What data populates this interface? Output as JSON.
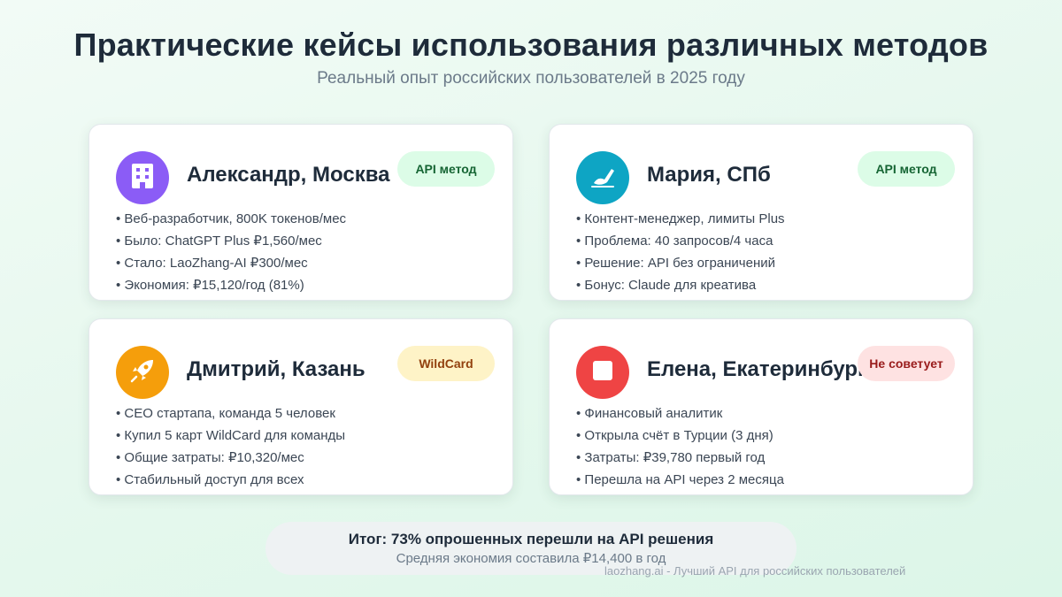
{
  "header": {
    "title": "Практические кейсы использования различных методов",
    "subtitle": "Реальный опыт российских пользователей в 2025 году"
  },
  "cards": [
    {
      "name": "Александр, Москва",
      "icon": "building-icon",
      "avatar_color": "#8b5cf6",
      "badge": "API метод",
      "badge_bg": "#dcfce7",
      "badge_color": "#166534",
      "items": [
        "• Веб-разработчик, 800K токенов/мес",
        "• Было: ChatGPT Plus ₽1,560/мес",
        "• Стало: LaoZhang-AI ₽300/мес",
        "• Экономия: ₽15,120/год (81%)"
      ]
    },
    {
      "name": "Мария, СПб",
      "icon": "writing-hand-icon",
      "avatar_color": "#0ea5c4",
      "badge": "API метод",
      "badge_bg": "#dcfce7",
      "badge_color": "#166534",
      "items": [
        "• Контент-менеджер, лимиты Plus",
        "• Проблема: 40 запросов/4 часа",
        "• Решение: API без ограничений",
        "• Бонус: Claude для креатива"
      ]
    },
    {
      "name": "Дмитрий, Казань",
      "icon": "rocket-icon",
      "avatar_color": "#f59e0b",
      "badge": "WildCard",
      "badge_bg": "#fef3c7",
      "badge_color": "#92400e",
      "items": [
        "• CEO стартапа, команда 5 человек",
        "• Купил 5 карт WildCard для команды",
        "• Общие затраты: ₽10,320/мес",
        "• Стабильный доступ для всех"
      ]
    },
    {
      "name": "Елена, Екатеринбург",
      "icon": "bank-icon",
      "avatar_color": "#ef4444",
      "badge": "Не советует",
      "badge_bg": "#fee2e2",
      "badge_color": "#991b1b",
      "items": [
        "• Финансовый аналитик",
        "• Открыла счёт в Турции (3 дня)",
        "• Затраты: ₽39,780 первый год",
        "• Перешла на API через 2 месяца"
      ]
    }
  ],
  "summary": {
    "title": "Итог: 73% опрошенных перешли на API решения",
    "subtitle": "Средняя экономия составила ₽14,400 в год"
  },
  "footer": "laozhang.ai - Лучший API для российских пользователей"
}
